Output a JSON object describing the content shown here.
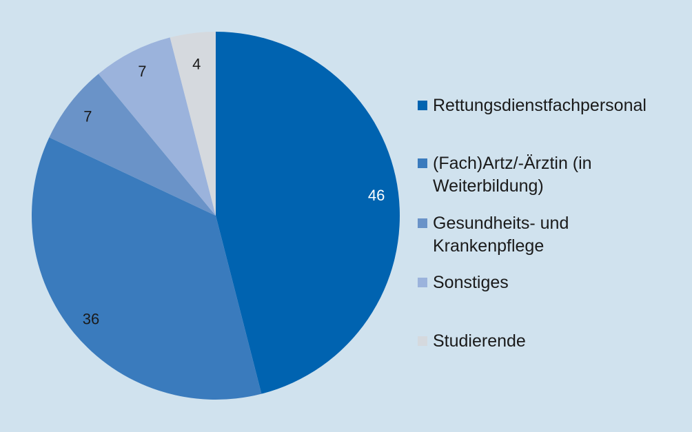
{
  "chart_data": {
    "type": "pie",
    "categories": [
      "Rettungsdienstfachpersonal",
      "(Fach)Artz/-Ärztin (in Weiterbildung)",
      "Gesundheits- und Krankenpflege",
      "Sonstiges",
      "Studierende"
    ],
    "values": [
      46,
      36,
      7,
      7,
      4
    ],
    "colors": [
      "#0063b0",
      "#3a7bbd",
      "#6a93c8",
      "#9bb3dc",
      "#d5d9de"
    ],
    "data_label_colors": [
      "#ffffff",
      "#1a1a1a",
      "#1a1a1a",
      "#1a1a1a",
      "#1a1a1a"
    ],
    "start_angle_deg": 0,
    "direction": "clockwise",
    "legend_position": "right"
  },
  "legend": {
    "items": [
      {
        "label": "Rettungsdienstfachpersonal"
      },
      {
        "label": "(Fach)Artz/-Ärztin (in Weiterbildung)"
      },
      {
        "label": "Gesundheits- und Krankenpflege"
      },
      {
        "label": "Sonstiges"
      },
      {
        "label": "Studierende"
      }
    ]
  }
}
